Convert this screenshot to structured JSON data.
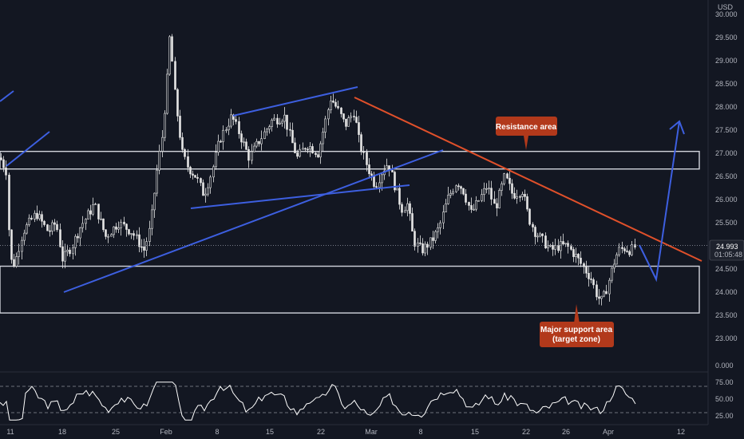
{
  "chart_data": [
    {
      "type": "candlestick",
      "title": "",
      "currency": "USD",
      "ylim": [
        22.9,
        30.3
      ],
      "y_ticks": [
        "23.000",
        "23.500",
        "24.000",
        "24.500",
        "25.000",
        "25.500",
        "26.000",
        "26.500",
        "27.000",
        "27.500",
        "28.000",
        "28.500",
        "29.000",
        "29.500",
        "30.000"
      ],
      "x_labels": [
        "11",
        "18",
        "25",
        "Feb",
        "8",
        "15",
        "22",
        "Mar",
        "8",
        "15",
        "22",
        "26",
        "Apr",
        "12"
      ],
      "current_price": "24.993",
      "countdown": "01:05:48",
      "zones": [
        {
          "name": "resistance",
          "low": 26.66,
          "high": 27.04
        },
        {
          "name": "support",
          "low": 23.55,
          "high": 24.56
        }
      ],
      "annotations": [
        {
          "text": "Resistance area",
          "color": "#b2391b"
        },
        {
          "text": "Major support area",
          "text2": "(target zone)",
          "color": "#b2391b"
        }
      ],
      "lines": [
        {
          "name": "rising-trendline-upper",
          "color": "#3d5fe0",
          "p1": [
            "11",
            28.4
          ],
          "p2": [
            "11",
            28.2
          ]
        },
        {
          "name": "descending-resistance",
          "color": "#e0502a"
        }
      ],
      "colors": {
        "background": "#131722",
        "candles": "#e6e6e6",
        "trendline": "#3d5fe0",
        "resistance_line": "#e0502a",
        "zone": "#d1d4dc",
        "callout": "#b2391b"
      }
    },
    {
      "type": "line",
      "name": "oscillator",
      "ylim": [
        0,
        100
      ],
      "y_ticks": [
        "0.000",
        "25.00",
        "50.00",
        "75.00"
      ],
      "levels": [
        70,
        30
      ]
    }
  ]
}
